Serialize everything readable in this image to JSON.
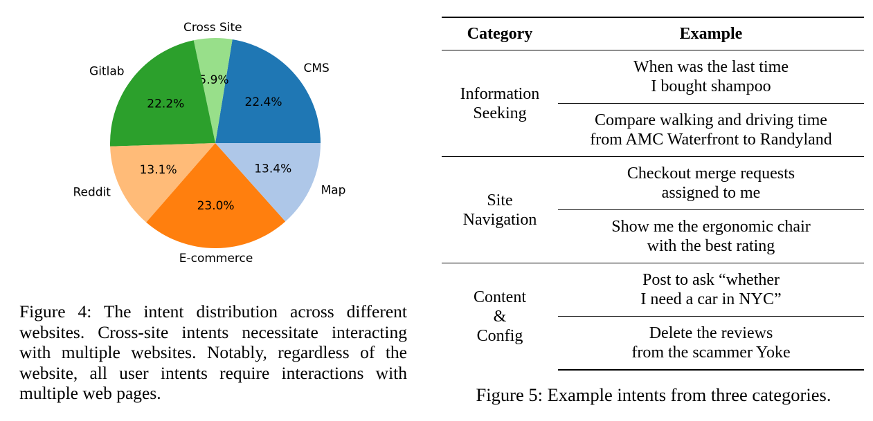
{
  "figure4": {
    "chart_data": {
      "type": "pie",
      "title": "",
      "slices": [
        {
          "label": "CMS",
          "value": 22.4,
          "pct_label": "22.4%",
          "color": "#1f77b4"
        },
        {
          "label": "Cross Site",
          "value": 5.9,
          "pct_label": "5.9%",
          "color": "#98df8a"
        },
        {
          "label": "Gitlab",
          "value": 22.2,
          "pct_label": "22.2%",
          "color": "#2ca02c"
        },
        {
          "label": "Reddit",
          "value": 13.1,
          "pct_label": "13.1%",
          "color": "#ffbb78"
        },
        {
          "label": "E-commerce",
          "value": 23.0,
          "pct_label": "23.0%",
          "color": "#ff7f0e"
        },
        {
          "label": "Map",
          "value": 13.4,
          "pct_label": "13.4%",
          "color": "#aec7e8"
        }
      ]
    },
    "caption": "Figure 4: The intent distribution across different websites. Cross-site intents necessitate interacting with multiple websites. Notably, regardless of the website, all user intents require interactions with multiple web pages."
  },
  "figure5": {
    "headers": {
      "category": "Category",
      "example": "Example"
    },
    "groups": [
      {
        "category_lines": [
          "Information",
          "Seeking"
        ],
        "examples": [
          [
            "When was the last time",
            "I bought shampoo"
          ],
          [
            "Compare walking and driving time",
            "from AMC Waterfront to Randyland"
          ]
        ]
      },
      {
        "category_lines": [
          "Site",
          "Navigation"
        ],
        "examples": [
          [
            "Checkout merge requests",
            "assigned to me"
          ],
          [
            "Show me the ergonomic chair",
            "with the best rating"
          ]
        ]
      },
      {
        "category_lines": [
          "Content",
          "&",
          "Config"
        ],
        "examples": [
          [
            "Post to ask “whether",
            "I need a car in NYC”"
          ],
          [
            "Delete the reviews",
            "from the scammer Yoke"
          ]
        ]
      }
    ],
    "caption": "Figure 5: Example intents from three categories."
  }
}
